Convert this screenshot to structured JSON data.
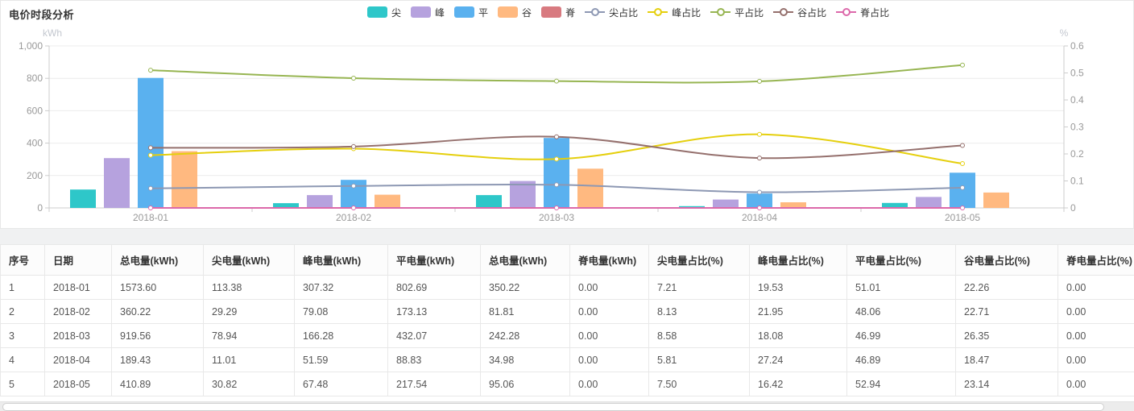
{
  "chart_data": {
    "type": "bar",
    "title": "电价时段分析",
    "categories": [
      "2018-01",
      "2018-02",
      "2018-03",
      "2018-04",
      "2018-05"
    ],
    "left_axis": {
      "name": "kWh",
      "min": 0,
      "max": 1000,
      "ticks": [
        "0",
        "200",
        "400",
        "600",
        "800",
        "1,000"
      ]
    },
    "right_axis": {
      "name": "%",
      "min": 0,
      "max": 0.6,
      "ticks": [
        "0",
        "0.1",
        "0.2",
        "0.3",
        "0.4",
        "0.5",
        "0.6"
      ]
    },
    "grid": true,
    "legend_position": "top",
    "bar_series": [
      {
        "name": "尖",
        "color": "#2ec7c9",
        "values": [
          113.38,
          29.29,
          78.94,
          11.01,
          30.82
        ]
      },
      {
        "name": "峰",
        "color": "#b6a2de",
        "values": [
          307.32,
          79.08,
          166.28,
          51.59,
          67.48
        ]
      },
      {
        "name": "平",
        "color": "#5ab1ef",
        "values": [
          802.69,
          173.13,
          432.07,
          88.83,
          217.54
        ]
      },
      {
        "name": "谷",
        "color": "#ffb980",
        "values": [
          350.22,
          81.81,
          242.28,
          34.98,
          95.06
        ]
      },
      {
        "name": "脊",
        "color": "#d87a80",
        "values": [
          0,
          0,
          0,
          0,
          0
        ]
      }
    ],
    "line_series": [
      {
        "name": "尖占比",
        "color": "#8d98b3",
        "values": [
          0.0721,
          0.0813,
          0.0858,
          0.0581,
          0.075
        ]
      },
      {
        "name": "峰占比",
        "color": "#e5cf0d",
        "values": [
          0.1953,
          0.2195,
          0.1808,
          0.2724,
          0.1642
        ]
      },
      {
        "name": "平占比",
        "color": "#97b552",
        "values": [
          0.5101,
          0.4806,
          0.4699,
          0.4689,
          0.5294
        ]
      },
      {
        "name": "谷占比",
        "color": "#95706d",
        "values": [
          0.2226,
          0.2271,
          0.2635,
          0.1847,
          0.2314
        ]
      },
      {
        "name": "脊占比",
        "color": "#dc69aa",
        "values": [
          0,
          0,
          0,
          0,
          0
        ]
      }
    ]
  },
  "table": {
    "columns": [
      "序号",
      "日期",
      "总电量(kWh)",
      "尖电量(kWh)",
      "峰电量(kWh)",
      "平电量(kWh)",
      "总电量(kWh)",
      "脊电量(kWh)",
      "尖电量占比(%)",
      "峰电量占比(%)",
      "平电量占比(%)",
      "谷电量占比(%)",
      "脊电量占比(%)"
    ],
    "rows": [
      [
        "1",
        "2018-01",
        "1573.60",
        "113.38",
        "307.32",
        "802.69",
        "350.22",
        "0.00",
        "7.21",
        "19.53",
        "51.01",
        "22.26",
        "0.00"
      ],
      [
        "2",
        "2018-02",
        "360.22",
        "29.29",
        "79.08",
        "173.13",
        "81.81",
        "0.00",
        "8.13",
        "21.95",
        "48.06",
        "22.71",
        "0.00"
      ],
      [
        "3",
        "2018-03",
        "919.56",
        "78.94",
        "166.28",
        "432.07",
        "242.28",
        "0.00",
        "8.58",
        "18.08",
        "46.99",
        "26.35",
        "0.00"
      ],
      [
        "4",
        "2018-04",
        "189.43",
        "11.01",
        "51.59",
        "88.83",
        "34.98",
        "0.00",
        "5.81",
        "27.24",
        "46.89",
        "18.47",
        "0.00"
      ],
      [
        "5",
        "2018-05",
        "410.89",
        "30.82",
        "67.48",
        "217.54",
        "95.06",
        "0.00",
        "7.50",
        "16.42",
        "52.94",
        "23.14",
        "0.00"
      ]
    ]
  }
}
